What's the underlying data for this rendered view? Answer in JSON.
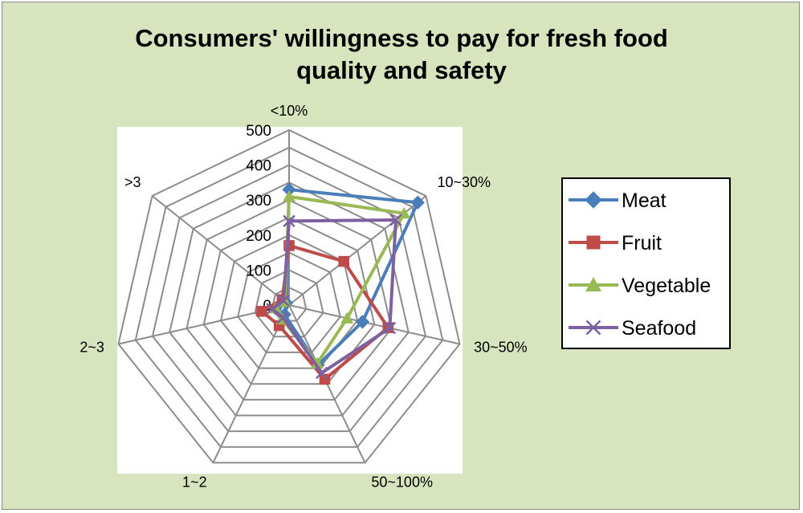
{
  "chart_data": {
    "type": "radar",
    "title_lines": [
      "Consumers' willingness to pay for fresh food",
      "quality and safety"
    ],
    "categories": [
      "<10%",
      "10~30%",
      "30~50%",
      "50~100%",
      "1~2",
      "2~3",
      ">3"
    ],
    "rlim": [
      0,
      500
    ],
    "ticks": [
      "0",
      "100",
      "200",
      "300",
      "400",
      "500"
    ],
    "tick_values": [
      0,
      100,
      200,
      300,
      400,
      500
    ],
    "grid": true,
    "legend_position": "right",
    "series": [
      {
        "name": "Meat",
        "color": "#4a7ebb",
        "marker": "diamond",
        "values": [
          330,
          470,
          215,
          190,
          30,
          40,
          10
        ]
      },
      {
        "name": "Fruit",
        "color": "#be4b48",
        "marker": "square",
        "values": [
          170,
          200,
          290,
          235,
          65,
          80,
          25
        ]
      },
      {
        "name": "Vegetable",
        "color": "#98b954",
        "marker": "triangle",
        "values": [
          310,
          420,
          170,
          185,
          45,
          40,
          15
        ]
      },
      {
        "name": "Seafood",
        "color": "#7d60a0",
        "marker": "x",
        "values": [
          240,
          390,
          295,
          215,
          40,
          50,
          20
        ]
      }
    ]
  }
}
